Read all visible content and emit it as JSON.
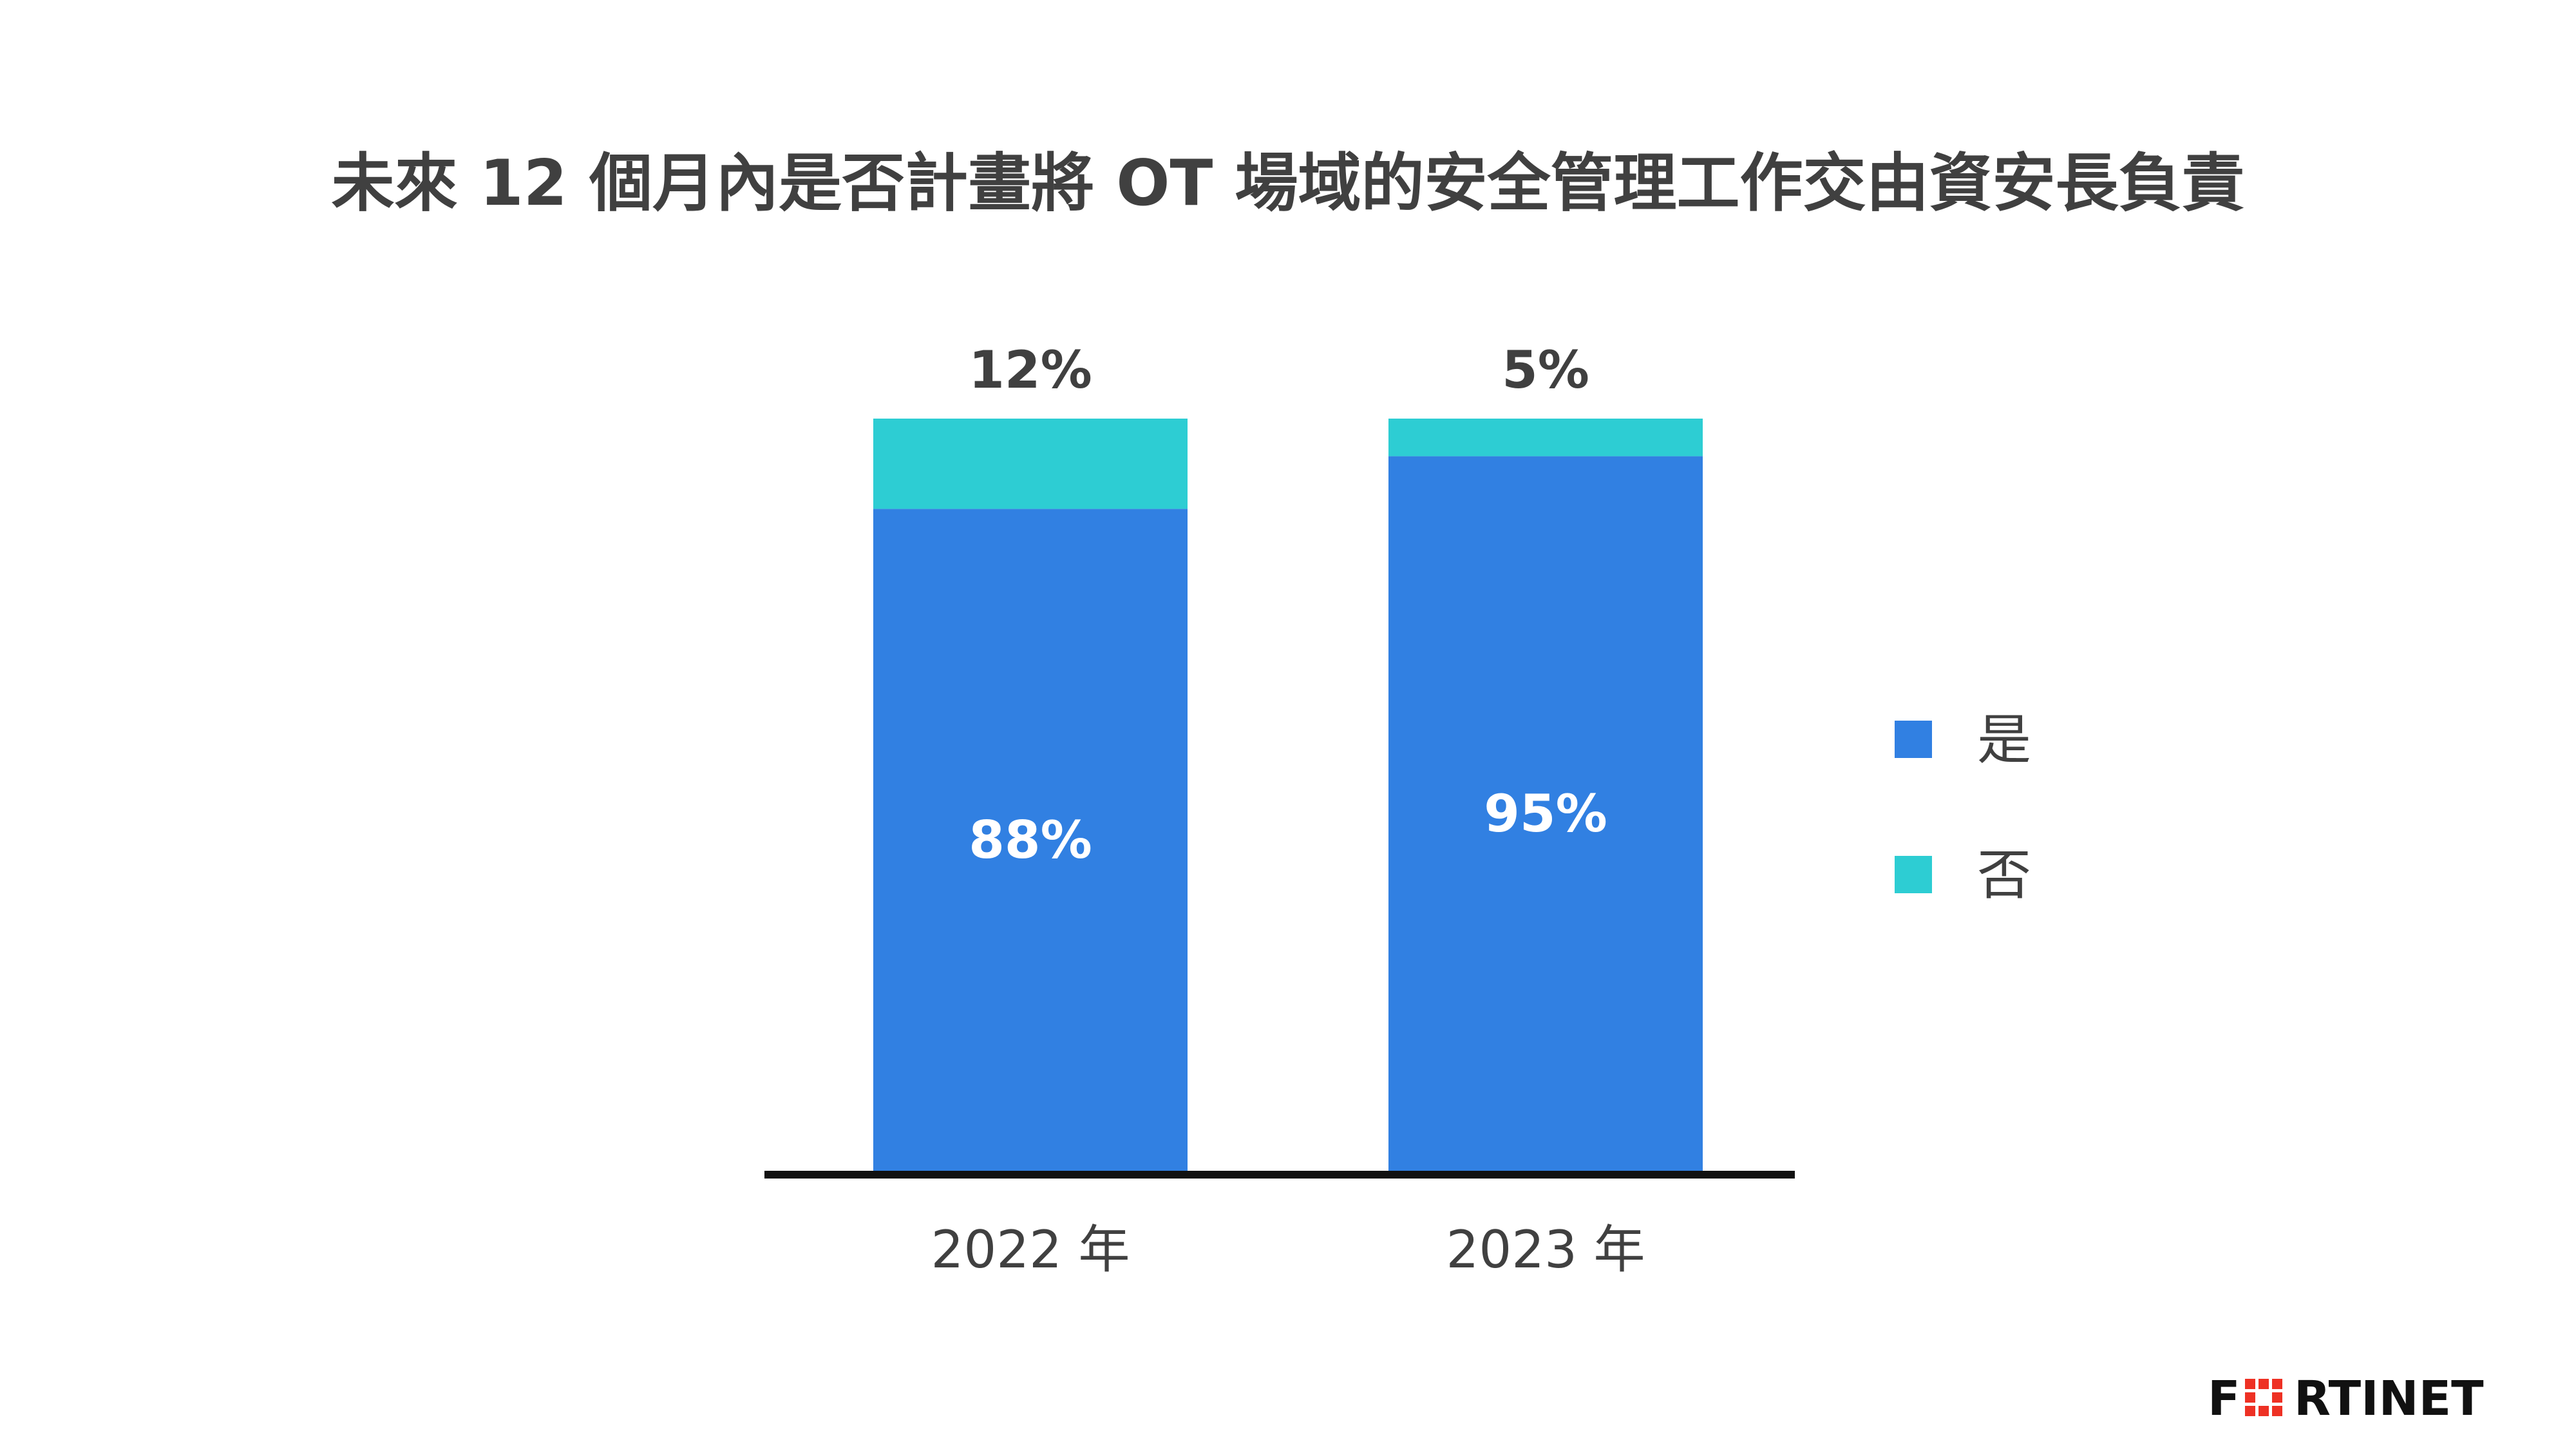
{
  "chart_data": {
    "type": "bar",
    "stacked": true,
    "title": "未來 12 個月內是否計畫將 OT 場域的安全管理工作交由資安長負責",
    "categories": [
      "2022 年",
      "2023 年"
    ],
    "series": [
      {
        "name": "是",
        "values": [
          88,
          95
        ],
        "labels": [
          "88%",
          "95%"
        ],
        "color": "#3180E2"
      },
      {
        "name": "否",
        "values": [
          12,
          5
        ],
        "labels": [
          "12%",
          "5%"
        ],
        "color": "#2DCDD3"
      }
    ],
    "ylim": [
      0,
      100
    ],
    "grid": false,
    "legend_position": "right",
    "value_unit": "%"
  },
  "logo": {
    "text": "FORTINET",
    "accent_color": "#EE3124"
  },
  "colors": {
    "text": "#404040",
    "axis": "#111111"
  }
}
